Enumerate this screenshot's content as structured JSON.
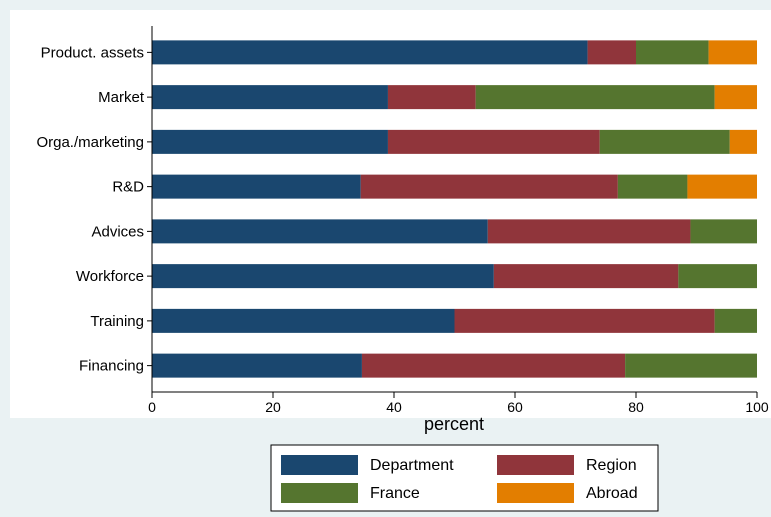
{
  "chart_data": {
    "type": "bar",
    "orientation": "horizontal",
    "stacked": true,
    "categories": [
      "Product. assets",
      "Market",
      "Orga./marketing",
      "R&D",
      "Advices",
      "Workforce",
      "Training",
      "Financing"
    ],
    "series": [
      {
        "name": "Department",
        "color": "#1a476f",
        "values": [
          72,
          39,
          39,
          34.5,
          55.5,
          56.5,
          50,
          34.7
        ]
      },
      {
        "name": "Region",
        "color": "#90353b",
        "values": [
          8,
          14.5,
          35,
          42.5,
          33.5,
          30.5,
          43,
          43.5
        ]
      },
      {
        "name": "France",
        "color": "#55752f",
        "values": [
          12,
          39.5,
          21.5,
          11.5,
          11,
          13,
          7,
          21.8
        ]
      },
      {
        "name": "Abroad",
        "color": "#e37e00",
        "values": [
          8,
          7,
          4.5,
          11.5,
          0,
          0,
          0,
          0
        ]
      }
    ],
    "xlabel": "percent",
    "xlim": [
      0,
      100
    ],
    "xticks": [
      0,
      20,
      40,
      60,
      80,
      100
    ],
    "legend_position": "bottom",
    "grid": false
  }
}
